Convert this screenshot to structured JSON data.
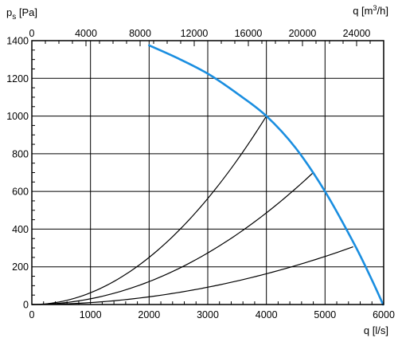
{
  "chart_data": {
    "type": "line",
    "title": "",
    "ylabel": {
      "base": "p",
      "sub": "s",
      "unit": " [Pa]"
    },
    "xlabel": "q [l/s]",
    "x2label": {
      "base": "q [m",
      "sup": "3",
      "unit": "/h]"
    },
    "xlim": [
      0,
      6000
    ],
    "ylim": [
      0,
      1400
    ],
    "x2lim": [
      0,
      26000
    ],
    "x_ticks": [
      0,
      1000,
      2000,
      3000,
      4000,
      5000,
      6000
    ],
    "x_tick_labels": [
      "0",
      "1000",
      "2000",
      "3000",
      "4000",
      "5000",
      "6000"
    ],
    "y_ticks": [
      0,
      200,
      400,
      600,
      800,
      1000,
      1200,
      1400
    ],
    "y_tick_labels": [
      "0",
      "200",
      "400",
      "600",
      "800",
      "1000",
      "1200",
      "1400"
    ],
    "x2_ticks": [
      0,
      4000,
      8000,
      12000,
      16000,
      20000,
      24000
    ],
    "x2_tick_labels": [
      "0",
      "4000",
      "8000",
      "12000",
      "16000",
      "20000",
      "24000"
    ],
    "grid": true,
    "fan_curve": {
      "color": "#1a8ee0",
      "x": [
        2000,
        2500,
        3000,
        3500,
        4000,
        4500,
        5000,
        5500,
        5800,
        5990
      ],
      "y": [
        1375,
        1305,
        1225,
        1120,
        1000,
        830,
        600,
        320,
        130,
        0
      ]
    },
    "system_curves": [
      {
        "color": "#000000",
        "k": 6.25e-05,
        "x_end": 4000
      },
      {
        "color": "#000000",
        "k": 3.04e-05,
        "x_end": 4800
      },
      {
        "color": "#000000",
        "k": 1.02e-05,
        "x_end": 5480
      }
    ]
  }
}
